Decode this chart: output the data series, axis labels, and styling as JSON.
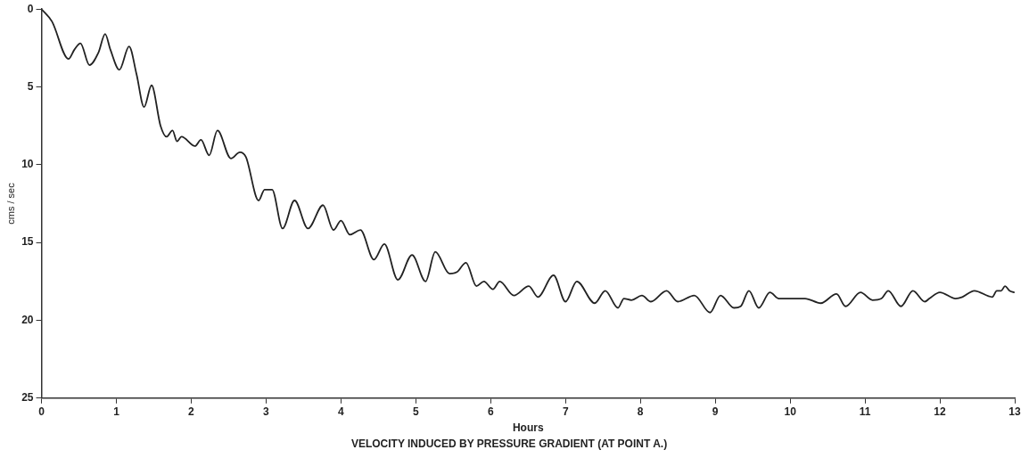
{
  "chart_data": {
    "type": "line",
    "title": "VELOCITY INDUCED BY PRESSURE GRADIENT (AT POINT A.)",
    "xlabel": "Hours",
    "ylabel": "cms / sec",
    "xlim": [
      0,
      13
    ],
    "xticks": [
      0,
      1,
      2,
      3,
      4,
      5,
      6,
      7,
      8,
      9,
      10,
      11,
      12,
      13
    ],
    "ylim": [
      25,
      0
    ],
    "yticks": [
      0,
      5,
      10,
      15,
      20,
      25
    ],
    "grid": false,
    "legend": false,
    "marker": "none",
    "line_style": "solid",
    "series": [
      {
        "color": "#222222",
        "x": [
          0,
          0.14,
          0.36,
          0.44,
          0.52,
          0.64,
          0.76,
          0.85,
          0.92,
          1.04,
          1.17,
          1.27,
          1.37,
          1.47,
          1.59,
          1.67,
          1.75,
          1.81,
          1.87,
          2.05,
          2.13,
          2.24,
          2.35,
          2.53,
          2.65,
          2.73,
          2.9,
          2.98,
          3.08,
          3.22,
          3.38,
          3.56,
          3.76,
          3.9,
          4.0,
          4.12,
          4.26,
          4.44,
          4.58,
          4.76,
          4.95,
          5.13,
          5.26,
          5.45,
          5.55,
          5.67,
          5.81,
          5.91,
          6.03,
          6.12,
          6.31,
          6.51,
          6.63,
          6.84,
          7.0,
          7.15,
          7.39,
          7.53,
          7.7,
          7.78,
          7.88,
          8.02,
          8.14,
          8.35,
          8.5,
          8.72,
          8.93,
          9.07,
          9.25,
          9.34,
          9.45,
          9.58,
          9.73,
          9.85,
          10.01,
          10.2,
          10.41,
          10.62,
          10.74,
          10.94,
          11.1,
          11.22,
          11.31,
          11.48,
          11.64,
          11.8,
          11.86,
          12.0,
          12.21,
          12.3,
          12.46,
          12.7,
          12.76,
          12.82,
          12.87,
          12.93,
          12.99
        ],
        "values": [
          0,
          0.8,
          3.2,
          2.6,
          2.2,
          3.6,
          2.8,
          1.6,
          2.6,
          3.9,
          2.4,
          4.2,
          6.3,
          4.9,
          7.5,
          8.2,
          7.8,
          8.5,
          8.2,
          8.8,
          8.4,
          9.4,
          7.8,
          9.6,
          9.2,
          9.5,
          12.3,
          11.6,
          11.6,
          14.1,
          12.3,
          14.1,
          12.6,
          14.2,
          13.6,
          14.5,
          14.2,
          16.1,
          15.1,
          17.4,
          15.8,
          17.5,
          15.6,
          17.0,
          16.9,
          16.3,
          17.8,
          17.5,
          18.0,
          17.5,
          18.4,
          17.8,
          18.5,
          17.1,
          18.8,
          17.5,
          18.9,
          18.1,
          19.2,
          18.6,
          18.7,
          18.4,
          18.8,
          18.1,
          18.8,
          18.4,
          19.5,
          18.4,
          19.2,
          19.1,
          18.1,
          19.2,
          18.2,
          18.6,
          18.6,
          18.6,
          18.9,
          18.3,
          19.1,
          18.2,
          18.7,
          18.6,
          18.1,
          19.1,
          18.1,
          18.8,
          18.6,
          18.2,
          18.6,
          18.5,
          18.1,
          18.5,
          18.1,
          18.1,
          17.8,
          18.1,
          18.2
        ]
      }
    ]
  }
}
